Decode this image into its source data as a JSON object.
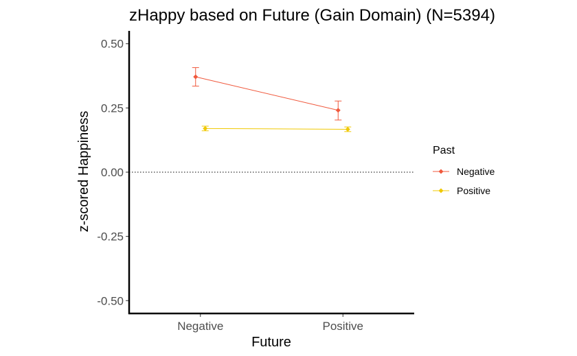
{
  "chart_data": {
    "type": "line",
    "title": "zHappy based on Future (Gain Domain) (N=5394)",
    "xlabel": "Future",
    "ylabel": "z-scored Happiness",
    "categories": [
      "Negative",
      "Positive"
    ],
    "ylim": [
      -0.55,
      0.55
    ],
    "yticks": [
      "0.50",
      "0.25",
      "0.00",
      "-0.25",
      "-0.50"
    ],
    "reference_line": 0,
    "grid": false,
    "legend": {
      "title": "Past",
      "position": "right"
    },
    "series": [
      {
        "name": "Negative",
        "color": "#f0583c",
        "values": [
          0.371,
          0.241
        ],
        "error_low": [
          0.335,
          0.203
        ],
        "error_high": [
          0.407,
          0.277
        ]
      },
      {
        "name": "Positive",
        "color": "#f0c800",
        "values": [
          0.17,
          0.167
        ],
        "error_low": [
          0.161,
          0.158
        ],
        "error_high": [
          0.179,
          0.176
        ]
      }
    ]
  }
}
